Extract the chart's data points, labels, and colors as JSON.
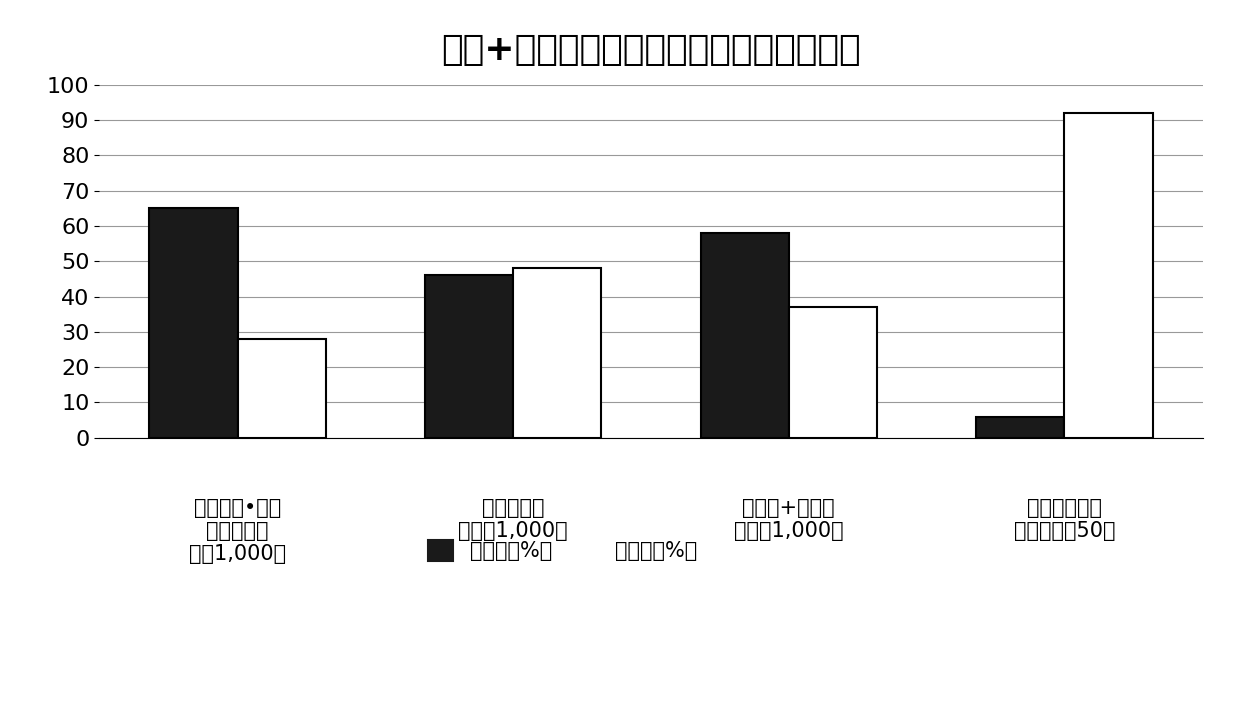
{
  "title": "灌注+叶面喷洒效果试验（全罗南道莞岛）",
  "categories": [
    "氯氧化铜•春雷\n霉素可湿性\n粉剂1,000倍",
    "链霉素可湿\n性粉剂1,000倍",
    "链霉素+铜可湿\n性粉剂1,000倍",
    "蓝宝石波尔多\n（水溶性）50倍"
  ],
  "series1_label": "病叶率（%）",
  "series2_label": "防治值（%）",
  "series1_values": [
    65,
    46,
    58,
    6
  ],
  "series2_values": [
    28,
    48,
    37,
    92
  ],
  "series1_color": "#1a1a1a",
  "series2_color": "#ffffff",
  "bar_edge_color": "#000000",
  "ylim": [
    0,
    100
  ],
  "yticks": [
    0,
    10,
    20,
    30,
    40,
    50,
    60,
    70,
    80,
    90,
    100
  ],
  "background_color": "#ffffff",
  "title_fontsize": 26,
  "tick_fontsize": 16,
  "label_fontsize": 15,
  "legend_fontsize": 15
}
